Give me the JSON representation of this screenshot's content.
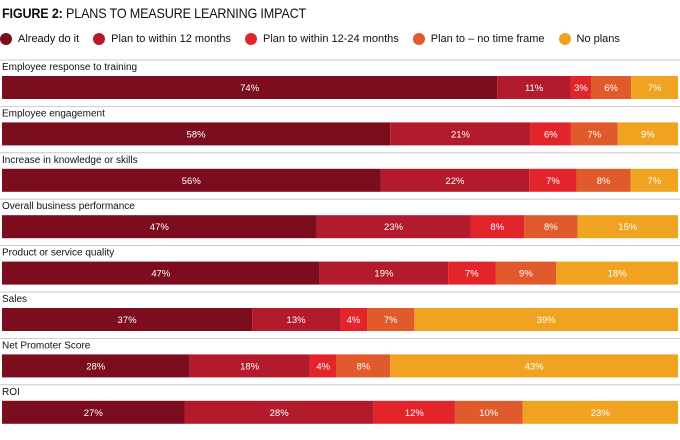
{
  "figure": {
    "label": "FIGURE 2:",
    "title": "PLANS TO MEASURE LEARNING IMPACT"
  },
  "colors": [
    "#7b0d1e",
    "#b31b2c",
    "#e3242b",
    "#e05a2b",
    "#f0a221"
  ],
  "chart_data": {
    "type": "bar",
    "orientation": "horizontal",
    "stacked": true,
    "value_suffix": "%",
    "legend_position": "top",
    "categories": [
      "Employee response to training",
      "Employee engagement",
      "Increase in knowledge or skills",
      "Overall business performance",
      "Product or service quality",
      "Sales",
      "Net Promoter Score",
      "ROI"
    ],
    "series": [
      {
        "name": "Already do it",
        "values": [
          74,
          58,
          56,
          47,
          47,
          37,
          28,
          27
        ]
      },
      {
        "name": "Plan to within 12 months",
        "values": [
          11,
          21,
          22,
          23,
          19,
          13,
          18,
          28
        ]
      },
      {
        "name": "Plan to within 12-24 months",
        "values": [
          3,
          6,
          7,
          8,
          7,
          4,
          4,
          12
        ]
      },
      {
        "name": "Plan to – no time frame",
        "values": [
          6,
          7,
          8,
          8,
          9,
          7,
          8,
          10
        ]
      },
      {
        "name": "No plans",
        "values": [
          7,
          9,
          7,
          15,
          18,
          39,
          43,
          23
        ]
      }
    ]
  }
}
